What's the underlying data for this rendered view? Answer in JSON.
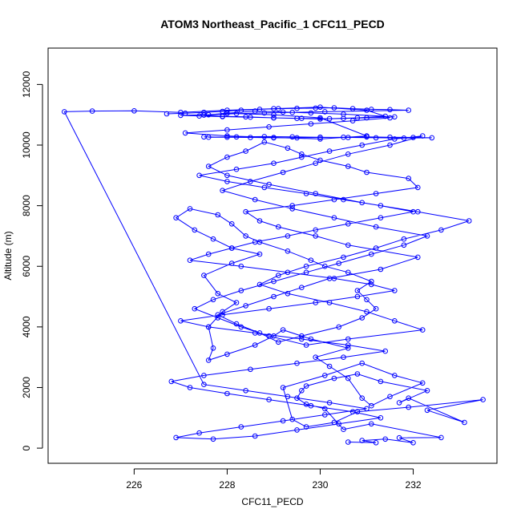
{
  "chart_data": {
    "type": "scatter",
    "title": "ATOM3 Northeast_Pacific_1 CFC11_PECD",
    "xlabel": "CFC11_PECD",
    "ylabel": "Altitude (m)",
    "xlim": [
      224.15,
      233.8
    ],
    "ylim": [
      -500,
      13200
    ],
    "xticks": [
      "226",
      "228",
      "230",
      "232"
    ],
    "yticks": [
      "0",
      "2000",
      "4000",
      "6000",
      "8000",
      "10000",
      "12000"
    ],
    "grid": false,
    "colors": {
      "series": "#0000ff",
      "axis": "#000000",
      "background": "#ffffff"
    },
    "series": [
      {
        "style": "line-and-open-circles",
        "x": [
          230.6,
          231.2,
          230.9,
          231.4,
          232.0,
          231.7,
          232.6,
          231.1,
          230.5,
          230.1,
          229.7,
          229.5,
          229.6,
          229.7,
          230.3,
          230.8,
          231.3,
          232.3,
          231.7,
          231.9,
          233.1,
          232.3,
          233.5,
          231.9,
          230.8,
          230.3,
          229.7,
          229.4,
          229.2,
          230.1,
          230.9,
          231.6,
          232.2,
          231.5,
          231.1,
          230.9,
          230.6,
          230.2,
          229.9,
          230.6,
          229.8,
          229.2,
          229.0,
          228.6,
          228.0,
          227.6,
          227.7,
          227.6,
          227.9,
          228.2,
          227.8,
          227.5,
          228.1,
          228.7,
          228.1,
          227.7,
          227.3,
          226.9,
          227.2,
          227.8,
          228.1,
          228.4,
          228.7,
          229.3,
          229.8,
          230.1,
          230.6,
          231.1,
          230.8,
          231.0,
          231.2,
          230.9,
          230.4,
          229.6,
          229.1,
          228.7,
          228.2,
          227.8,
          228.4,
          229.0,
          229.6,
          230.2,
          231.3,
          232.1,
          230.6,
          229.9,
          229.1,
          228.7,
          228.4,
          229.4,
          230.3,
          231.2,
          232.1,
          231.9,
          231.0,
          230.6,
          230.0,
          229.6,
          229.3,
          228.8,
          228.4,
          228.0,
          227.6,
          228.0,
          228.9,
          229.9,
          230.9,
          232.1,
          233.2,
          232.6,
          231.8,
          231.2,
          230.5,
          229.7,
          229.1,
          228.7,
          229.3,
          230.2,
          231.0,
          231.6,
          232.2,
          230.6,
          229.7,
          228.9,
          228.3,
          227.8,
          227.3,
          227.7,
          228.3,
          229.0,
          229.7,
          230.4,
          231.1,
          231.8,
          232.3,
          231.2,
          230.3,
          229.4,
          228.6,
          227.9,
          228.5,
          229.2,
          229.9,
          230.6,
          231.5,
          232.2,
          231.6,
          230.9,
          230.2,
          229.6,
          229.0,
          228.2,
          227.4,
          228.0,
          228.8,
          229.7,
          230.5,
          231.3,
          232.0,
          231.3,
          230.6,
          229.9,
          229.3,
          228.6,
          228.1,
          227.6,
          227.2,
          228.3,
          229.3,
          230.3,
          231.1,
          231.6,
          230.8,
          229.9,
          228.9,
          227.9,
          227.0,
          227.6,
          228.6,
          229.6,
          230.6,
          231.4,
          230.5,
          229.5,
          228.5,
          227.5,
          226.8,
          227.2,
          228.0,
          228.9,
          229.8,
          230.7,
          231.3,
          230.4,
          229.5,
          228.6,
          227.7,
          226.9,
          227.4,
          228.3,
          229.2,
          230.1,
          231.0,
          230.2,
          229.3,
          228.4,
          227.5,
          224.5,
          225.1,
          226.0,
          227.0,
          228.0,
          229.0,
          230.0,
          231.0,
          231.5,
          230.7,
          229.8,
          228.9,
          228.0,
          227.1,
          228.0,
          229.0,
          230.0,
          231.0,
          230.0,
          229.0,
          228.0
        ],
        "y": [
          200,
          180,
          250,
          300,
          180,
          340,
          350,
          800,
          620,
          1300,
          1450,
          1650,
          1900,
          2050,
          2300,
          2450,
          2200,
          1900,
          1500,
          1650,
          850,
          1250,
          1600,
          1350,
          1200,
          850,
          700,
          950,
          2000,
          2400,
          2800,
          2400,
          2150,
          1700,
          1400,
          1650,
          2300,
          2700,
          3000,
          3300,
          3600,
          3900,
          3700,
          3400,
          3100,
          2900,
          3300,
          4000,
          4500,
          4800,
          5100,
          5700,
          6100,
          6400,
          6600,
          6900,
          7200,
          7600,
          7900,
          7700,
          7400,
          7000,
          6800,
          6500,
          6200,
          6000,
          5800,
          5500,
          5200,
          4900,
          4600,
          4300,
          4000,
          3700,
          3500,
          3800,
          4100,
          4400,
          4700,
          5000,
          5300,
          5600,
          5900,
          6300,
          6700,
          7000,
          7300,
          7500,
          7800,
          8000,
          8200,
          8400,
          8600,
          8900,
          9100,
          9300,
          9500,
          9700,
          9900,
          10100,
          9800,
          9600,
          9300,
          9000,
          8700,
          8400,
          8100,
          7800,
          7500,
          7200,
          6900,
          6600,
          6300,
          6000,
          5700,
          5400,
          5100,
          4800,
          4500,
          4200,
          3900,
          3600,
          3400,
          3700,
          4000,
          4300,
          4600,
          4900,
          5200,
          5500,
          5800,
          6100,
          6400,
          6700,
          7000,
          7300,
          7600,
          7900,
          8200,
          8500,
          8800,
          9100,
          9400,
          9700,
          10000,
          10300,
          10200,
          10000,
          9800,
          9600,
          9400,
          9200,
          9000,
          8800,
          8600,
          8400,
          8200,
          8000,
          7800,
          7600,
          7400,
          7200,
          7000,
          6800,
          6600,
          6400,
          6200,
          6000,
          5800,
          5600,
          5400,
          5200,
          5000,
          4800,
          4600,
          4400,
          4200,
          4000,
          3800,
          3600,
          3400,
          3200,
          3000,
          2800,
          2600,
          2400,
          2200,
          2000,
          1800,
          1600,
          1400,
          1200,
          1000,
          800,
          600,
          400,
          300,
          350,
          500,
          700,
          900,
          1100,
          1300,
          1500,
          1700,
          1900,
          2100,
          11100,
          11120,
          11130,
          11080,
          11150,
          11200,
          11250,
          11150,
          10900,
          10800,
          10700,
          10600,
          10500,
          10400,
          10300,
          10250,
          10200,
          10300,
          10900,
          11000,
          11050
        ]
      }
    ],
    "dense_band_upper": {
      "x": [
        226.7,
        227.1,
        227.5,
        227.9,
        228.3,
        228.7,
        229.1,
        229.5,
        229.9,
        230.3,
        230.7,
        231.1,
        231.5,
        231.9,
        230.1,
        229.4,
        228.8,
        228.2,
        227.6,
        227.0,
        227.4,
        227.9,
        228.5,
        229.0,
        229.6,
        230.2,
        230.8,
        231.4,
        230.5,
        229.8,
        229.2,
        228.6,
        228.0,
        227.5,
        227.9,
        228.4,
        229.0,
        229.5,
        230.0,
        230.5,
        231.0,
        231.6
      ],
      "y": [
        11030,
        11050,
        11080,
        11110,
        11150,
        11180,
        11200,
        11210,
        11220,
        11230,
        11200,
        11180,
        11170,
        11150,
        11100,
        11080,
        11060,
        11040,
        11000,
        10980,
        10960,
        10940,
        10920,
        10900,
        10880,
        10870,
        10900,
        10950,
        11020,
        11060,
        11090,
        11120,
        11050,
        10990,
        10950,
        10930,
        10900,
        10880,
        10860,
        10880,
        10900,
        10930
      ]
    },
    "dense_band_lower": {
      "x": [
        227.5,
        228.0,
        228.5,
        229.0,
        229.5,
        230.0,
        230.5,
        231.0,
        231.5,
        232.0,
        232.4,
        231.8,
        231.2,
        230.6,
        230.0,
        229.4,
        228.8,
        228.2,
        227.6
      ],
      "y": [
        10270,
        10260,
        10250,
        10240,
        10240,
        10250,
        10260,
        10270,
        10260,
        10250,
        10240,
        10230,
        10240,
        10250,
        10260,
        10270,
        10280,
        10270,
        10260
      ]
    }
  }
}
